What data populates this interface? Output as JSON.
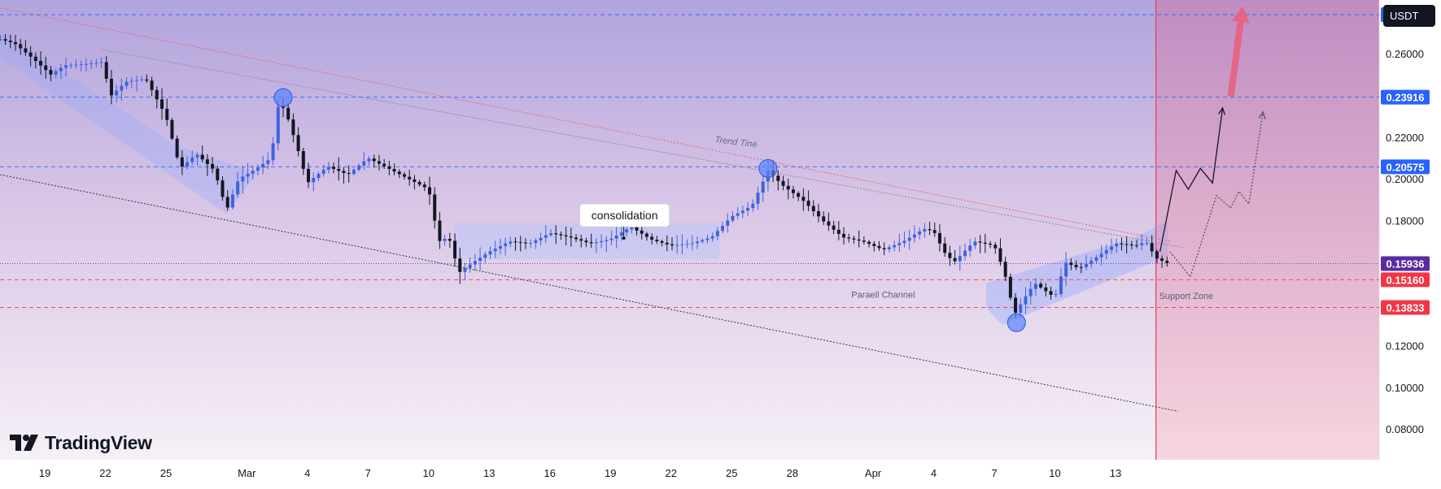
{
  "currency": "USDT",
  "brand": "TradingView",
  "chart_data": {
    "type": "candlestick",
    "y_axis": {
      "ylim": [
        0.0715,
        0.285
      ],
      "ticks": [
        "0.26000",
        "0.22000",
        "0.20000",
        "0.18000",
        "0.12000",
        "0.10000",
        "0.08000"
      ]
    },
    "x_axis": {
      "ticks": [
        {
          "label": "19",
          "day": 0
        },
        {
          "label": "22",
          "day": 3
        },
        {
          "label": "25",
          "day": 6
        },
        {
          "label": "Mar",
          "day": 10
        },
        {
          "label": "4",
          "day": 13
        },
        {
          "label": "7",
          "day": 16
        },
        {
          "label": "10",
          "day": 19
        },
        {
          "label": "13",
          "day": 22
        },
        {
          "label": "16",
          "day": 25
        },
        {
          "label": "19",
          "day": 28
        },
        {
          "label": "22",
          "day": 31
        },
        {
          "label": "25",
          "day": 34
        },
        {
          "label": "28",
          "day": 37
        },
        {
          "label": "Apr",
          "day": 41
        },
        {
          "label": "4",
          "day": 44
        },
        {
          "label": "7",
          "day": 47
        },
        {
          "label": "10",
          "day": 50
        },
        {
          "label": "13",
          "day": 53
        }
      ]
    },
    "close_path": [
      [
        -2.2,
        0.267
      ],
      [
        -1.5,
        0.265
      ],
      [
        -0.5,
        0.257
      ],
      [
        0.3,
        0.25
      ],
      [
        1.0,
        0.2545
      ],
      [
        2.0,
        0.255
      ],
      [
        2.8,
        0.256
      ],
      [
        3.3,
        0.24
      ],
      [
        4.0,
        0.2465
      ],
      [
        5.0,
        0.248
      ],
      [
        6.0,
        0.23
      ],
      [
        6.7,
        0.205
      ],
      [
        7.5,
        0.212
      ],
      [
        8.4,
        0.204
      ],
      [
        9.0,
        0.185
      ],
      [
        9.6,
        0.2
      ],
      [
        10.5,
        0.205
      ],
      [
        11.2,
        0.21
      ],
      [
        11.6,
        0.238
      ],
      [
        12.0,
        0.23
      ],
      [
        12.5,
        0.215
      ],
      [
        13.0,
        0.198
      ],
      [
        14.0,
        0.206
      ],
      [
        15.0,
        0.202
      ],
      [
        16.0,
        0.21
      ],
      [
        17.0,
        0.205
      ],
      [
        18.0,
        0.2
      ],
      [
        19.0,
        0.195
      ],
      [
        19.5,
        0.17
      ],
      [
        20.0,
        0.172
      ],
      [
        20.5,
        0.155
      ],
      [
        21.2,
        0.16
      ],
      [
        22.0,
        0.165
      ],
      [
        23.0,
        0.17
      ],
      [
        24.0,
        0.169
      ],
      [
        25.0,
        0.174
      ],
      [
        26.0,
        0.172
      ],
      [
        27.0,
        0.169
      ],
      [
        28.0,
        0.171
      ],
      [
        29.0,
        0.177
      ],
      [
        30.0,
        0.171
      ],
      [
        31.0,
        0.168
      ],
      [
        32.0,
        0.169
      ],
      [
        33.0,
        0.172
      ],
      [
        34.0,
        0.182
      ],
      [
        35.0,
        0.187
      ],
      [
        35.8,
        0.204
      ],
      [
        36.5,
        0.197
      ],
      [
        37.5,
        0.19
      ],
      [
        38.5,
        0.18
      ],
      [
        39.5,
        0.172
      ],
      [
        40.5,
        0.17
      ],
      [
        41.5,
        0.166
      ],
      [
        42.5,
        0.17
      ],
      [
        43.5,
        0.176
      ],
      [
        44.0,
        0.175
      ],
      [
        44.5,
        0.165
      ],
      [
        45.0,
        0.16
      ],
      [
        46.0,
        0.17
      ],
      [
        47.0,
        0.168
      ],
      [
        47.5,
        0.155
      ],
      [
        48.0,
        0.135
      ],
      [
        48.5,
        0.143
      ],
      [
        49.0,
        0.15
      ],
      [
        50.0,
        0.143
      ],
      [
        50.5,
        0.16
      ],
      [
        51.2,
        0.157
      ],
      [
        52.0,
        0.162
      ],
      [
        53.0,
        0.169
      ],
      [
        54.0,
        0.168
      ],
      [
        54.5,
        0.17
      ],
      [
        55.0,
        0.162
      ],
      [
        55.6,
        0.1594
      ]
    ],
    "price_levels": [
      {
        "value": 0.27872,
        "label": "0.27872",
        "color": "#2962ff"
      },
      {
        "value": 0.23916,
        "label": "0.23916",
        "color": "#2962ff"
      },
      {
        "value": 0.20575,
        "label": "0.20575",
        "color": "#2962ff"
      },
      {
        "value": 0.15936,
        "label": "0.15936",
        "color": "#5b2ca0"
      },
      {
        "value": 0.1516,
        "label": "0.15160",
        "color": "#f23645"
      },
      {
        "value": 0.13833,
        "label": "0.13833",
        "color": "#f23645"
      }
    ],
    "annotations": [
      {
        "text": "consolidation",
        "day": 28.7,
        "price": 0.1825,
        "style": "callout"
      },
      {
        "text": "Trend Tine",
        "day": 34.2,
        "price": 0.2163,
        "style": "rotated"
      },
      {
        "text": "Paraell Channel",
        "day": 41.5,
        "price": 0.143,
        "style": "plain"
      },
      {
        "text": "Support Zone",
        "day": 56.5,
        "price": 0.1425,
        "style": "plain"
      }
    ],
    "projection_lines": [
      {
        "style": "solid",
        "color": "#131722",
        "points": [
          [
            55.2,
            0.165
          ],
          [
            56.0,
            0.204
          ],
          [
            56.6,
            0.195
          ],
          [
            57.2,
            0.205
          ],
          [
            57.8,
            0.198
          ],
          [
            58.3,
            0.234
          ]
        ]
      },
      {
        "style": "dotted",
        "color": "#555555",
        "points": [
          [
            55.7,
            0.165
          ],
          [
            56.7,
            0.153
          ],
          [
            58.0,
            0.192
          ],
          [
            58.7,
            0.186
          ],
          [
            59.1,
            0.194
          ],
          [
            59.6,
            0.188
          ],
          [
            60.3,
            0.232
          ]
        ]
      }
    ],
    "channels": [
      {
        "name": "trend-line-red",
        "color": "#e56a6a",
        "points": [
          [
            -2.2,
            0.282
          ],
          [
            55.7,
            0.17
          ]
        ]
      },
      {
        "name": "trend-line-grey",
        "color": "#8a8a8a",
        "points": [
          [
            2.8,
            0.262
          ],
          [
            56.4,
            0.167
          ]
        ]
      },
      {
        "name": "channel-lower",
        "color": "#333333",
        "points": [
          [
            -2.2,
            0.202
          ],
          [
            56.1,
            0.0885
          ]
        ]
      }
    ],
    "circles": [
      {
        "day": 11.8,
        "price": 0.239
      },
      {
        "day": 35.8,
        "price": 0.205
      },
      {
        "day": 48.1,
        "price": 0.131
      }
    ]
  }
}
